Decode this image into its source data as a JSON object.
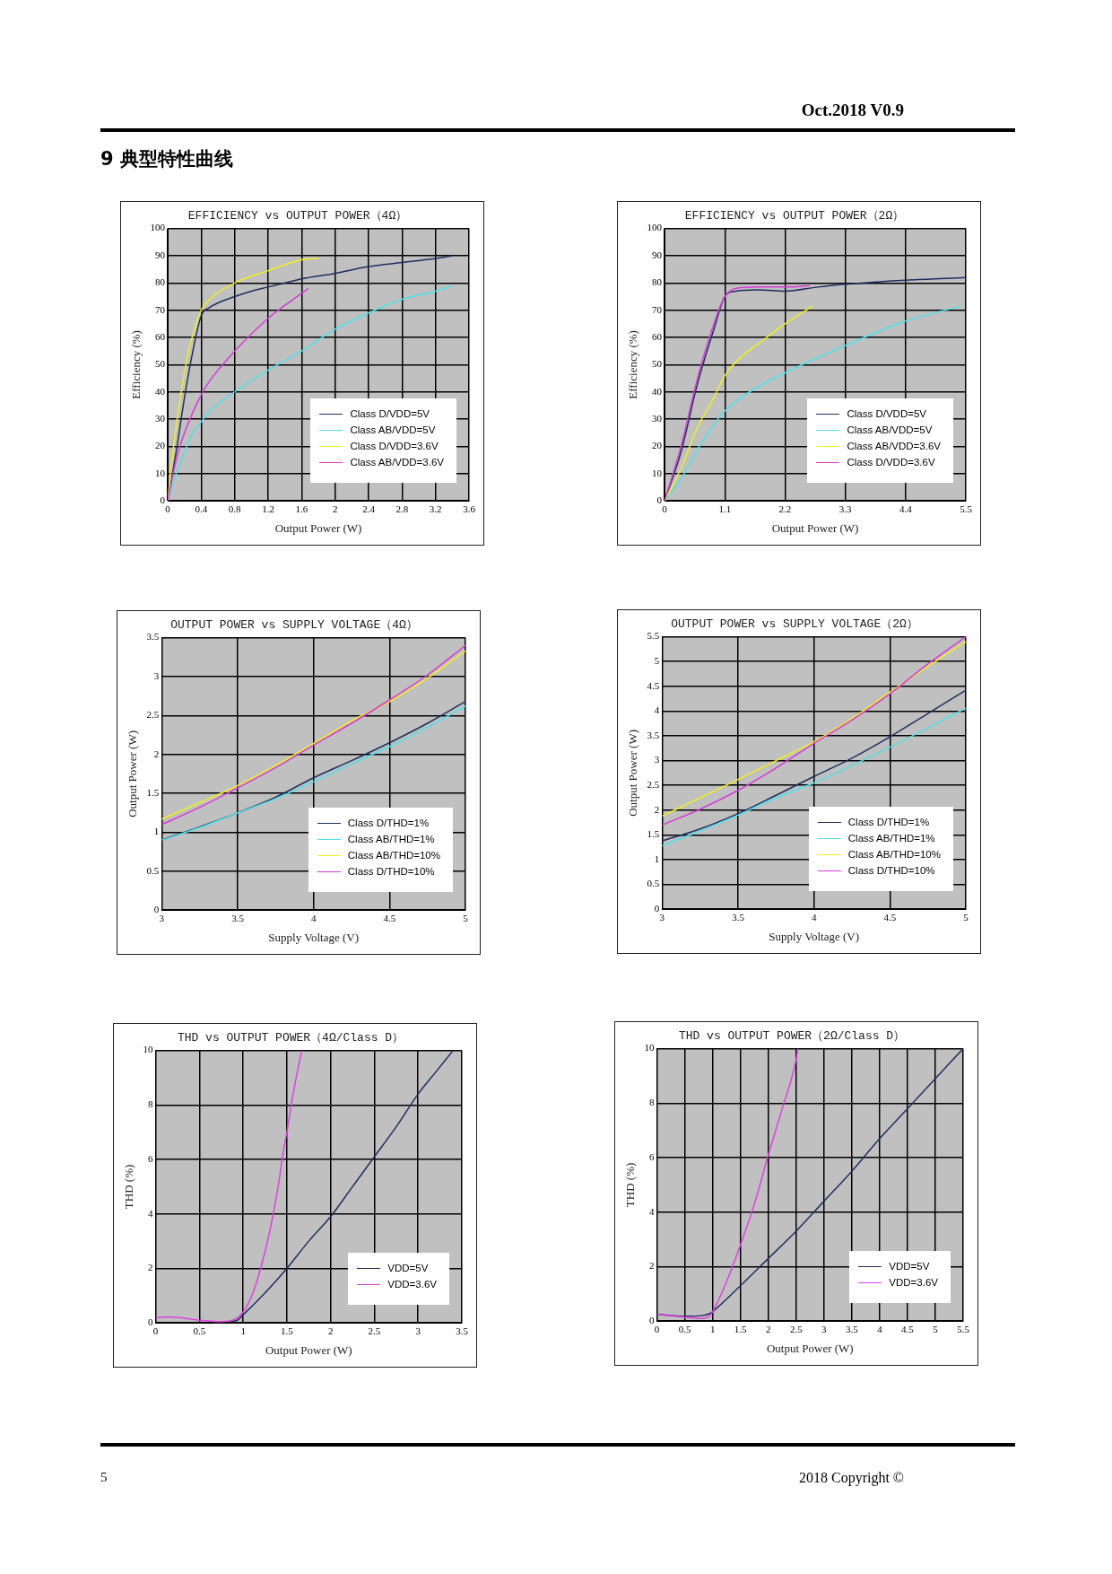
{
  "chart_data": [
    {
      "type": "other",
      "title": "9 典型特性曲线",
      "annotations": [
        "Oct.2018 V0.9",
        "5",
        "2018 Copyright ©"
      ]
    },
    {
      "type": "line",
      "title": "EFFICIENCY vs OUTPUT POWER（4Ω）",
      "xlabel": "Output Power (W)",
      "ylabel": "Efficiency (%)",
      "xlim": [
        0,
        3.6
      ],
      "xticks": [
        0,
        0.4,
        0.8,
        1.2,
        1.6,
        2,
        2.4,
        2.8,
        3.2,
        3.6
      ],
      "ylim": [
        0,
        100
      ],
      "yticks": [
        0,
        10,
        20,
        30,
        40,
        50,
        60,
        70,
        80,
        90,
        100
      ],
      "grid": true,
      "legend": "bottom right",
      "series": [
        {
          "name": "Class D/VDD=5V",
          "color": "#1f2f5f",
          "x": [
            0,
            0.1,
            0.2,
            0.3,
            0.4,
            0.5,
            0.8,
            1.0,
            1.2,
            1.4,
            1.6,
            2.0,
            2.4,
            2.8,
            3.2,
            3.4
          ],
          "values": [
            0,
            18,
            38,
            55,
            68,
            71,
            75,
            77,
            78.5,
            80,
            81.5,
            83.5,
            86,
            87.5,
            89,
            90
          ]
        },
        {
          "name": "Class AB/VDD=5V",
          "color": "#4fe0e8",
          "x": [
            0,
            0.1,
            0.2,
            0.3,
            0.4,
            0.5,
            0.8,
            1.2,
            1.6,
            2.0,
            2.4,
            2.8,
            3.2,
            3.4
          ],
          "values": [
            0,
            10,
            18,
            25,
            29,
            33,
            40,
            48,
            55,
            63,
            69,
            74,
            77,
            79
          ]
        },
        {
          "name": "Class D/VDD=3.6V",
          "color": "#f0ee20",
          "x": [
            0,
            0.05,
            0.15,
            0.25,
            0.4,
            0.5,
            0.8,
            1.2,
            1.6,
            1.8
          ],
          "values": [
            0,
            15,
            38,
            55,
            70,
            74,
            80,
            84.5,
            88.5,
            89
          ]
        },
        {
          "name": "Class AB/VDD=3.6V",
          "color": "#d63cd6",
          "x": [
            0,
            0.1,
            0.2,
            0.4,
            0.5,
            0.8,
            1.2,
            1.5,
            1.68
          ],
          "values": [
            0,
            15,
            25,
            39,
            44,
            55,
            67,
            74,
            78
          ]
        }
      ]
    },
    {
      "type": "line",
      "title": "EFFICIENCY vs OUTPUT POWER（2Ω）",
      "xlabel": "Output Power (W)",
      "ylabel": "Efficiency (%)",
      "xlim": [
        0,
        5.5
      ],
      "xticks": [
        0,
        1.1,
        2.2,
        3.3,
        4.4,
        5.5
      ],
      "ylim": [
        0,
        100
      ],
      "yticks": [
        0,
        10,
        20,
        30,
        40,
        50,
        60,
        70,
        80,
        90,
        100
      ],
      "grid": true,
      "legend": "bottom right",
      "series": [
        {
          "name": "Class D/VDD=5V",
          "color": "#1f2f5f",
          "x": [
            0,
            0.3,
            0.6,
            0.9,
            1.1,
            1.3,
            1.7,
            2.2,
            2.8,
            3.3,
            4.4,
            5.5
          ],
          "values": [
            0,
            18,
            43,
            63,
            75,
            77,
            77.5,
            77,
            78.5,
            79.5,
            81,
            82
          ]
        },
        {
          "name": "Class AB/VDD=5V",
          "color": "#4fe0e8",
          "x": [
            0,
            0.3,
            0.6,
            0.9,
            1.1,
            1.4,
            2.2,
            3.3,
            4.4,
            5.4
          ],
          "values": [
            0,
            8,
            19,
            28,
            33,
            38,
            47,
            57,
            66,
            71.5
          ]
        },
        {
          "name": "Class AB/VDD=3.6V",
          "color": "#f0ee20",
          "x": [
            0,
            0.3,
            0.6,
            0.9,
            1.1,
            1.3,
            1.8,
            2.2,
            2.7
          ],
          "values": [
            0,
            12,
            27,
            38,
            46,
            51,
            59,
            65,
            71.5
          ]
        },
        {
          "name": "Class D/VDD=3.6V",
          "color": "#d63cd6",
          "x": [
            0,
            0.3,
            0.6,
            0.9,
            1.1,
            1.3,
            1.7,
            2.2,
            2.65
          ],
          "values": [
            0,
            20,
            45,
            65,
            75,
            78,
            78.5,
            78.5,
            79
          ]
        }
      ]
    },
    {
      "type": "line",
      "title": "OUTPUT POWER vs SUPPLY VOLTAGE（4Ω）",
      "xlabel": "Supply Voltage (V)",
      "ylabel": "Output Power (W)",
      "xlim": [
        3,
        5
      ],
      "xticks": [
        3,
        3.5,
        4,
        4.5,
        5
      ],
      "ylim": [
        0,
        3.5
      ],
      "yticks": [
        0,
        0.5,
        1,
        1.5,
        2,
        2.5,
        3,
        3.5
      ],
      "grid": true,
      "legend": "bottom right",
      "series": [
        {
          "name": "Class D/THD=1%",
          "color": "#1f2f5f",
          "x": [
            3,
            3.25,
            3.5,
            3.75,
            4,
            4.25,
            4.5,
            4.75,
            5
          ],
          "values": [
            0.9,
            1.07,
            1.25,
            1.45,
            1.7,
            1.92,
            2.15,
            2.4,
            2.68
          ]
        },
        {
          "name": "Class AB/THD=1%",
          "color": "#4fe0e8",
          "x": [
            3,
            3.25,
            3.5,
            3.75,
            4,
            4.25,
            4.5,
            4.75,
            5
          ],
          "values": [
            0.9,
            1.06,
            1.25,
            1.43,
            1.65,
            1.88,
            2.1,
            2.35,
            2.62
          ]
        },
        {
          "name": "Class AB/THD=10%",
          "color": "#f0ee20",
          "x": [
            3,
            3.25,
            3.5,
            3.75,
            4,
            4.25,
            4.5,
            4.75,
            5
          ],
          "values": [
            1.17,
            1.38,
            1.6,
            1.86,
            2.14,
            2.43,
            2.68,
            2.98,
            3.33
          ]
        },
        {
          "name": "Class D/THD=10%",
          "color": "#d63cd6",
          "x": [
            3,
            3.25,
            3.5,
            3.75,
            4,
            4.25,
            4.5,
            4.75,
            5
          ],
          "values": [
            1.1,
            1.32,
            1.57,
            1.83,
            2.12,
            2.4,
            2.7,
            3.02,
            3.4
          ]
        }
      ]
    },
    {
      "type": "line",
      "title": "OUTPUT POWER vs SUPPLY VOLTAGE（2Ω）",
      "xlabel": "Supply Voltage (V)",
      "ylabel": "Output Power (W)",
      "xlim": [
        3,
        5
      ],
      "xticks": [
        3,
        3.5,
        4,
        4.5,
        5
      ],
      "ylim": [
        0,
        5.5
      ],
      "yticks": [
        0,
        0.5,
        1,
        1.5,
        2,
        2.5,
        3,
        3.5,
        4,
        4.5,
        5,
        5.5
      ],
      "grid": true,
      "legend": "bottom right",
      "series": [
        {
          "name": "Class D/THD=1%",
          "color": "#1f2f5f",
          "x": [
            3,
            3.25,
            3.5,
            3.75,
            4,
            4.25,
            4.5,
            4.75,
            5
          ],
          "values": [
            1.38,
            1.62,
            1.93,
            2.3,
            2.68,
            3.05,
            3.48,
            3.95,
            4.42
          ]
        },
        {
          "name": "Class AB/THD=1%",
          "color": "#4fe0e8",
          "x": [
            3,
            3.25,
            3.5,
            3.75,
            4,
            4.25,
            4.5,
            4.75,
            5
          ],
          "values": [
            1.28,
            1.58,
            1.9,
            2.25,
            2.55,
            2.9,
            3.27,
            3.66,
            4.06
          ]
        },
        {
          "name": "Class AB/THD=10%",
          "color": "#f0ee20",
          "x": [
            3,
            3.25,
            3.5,
            3.75,
            4,
            4.25,
            4.5,
            4.75,
            5
          ],
          "values": [
            1.88,
            2.25,
            2.62,
            3.0,
            3.38,
            3.85,
            4.38,
            4.9,
            5.4
          ]
        },
        {
          "name": "Class D/THD=10%",
          "color": "#d63cd6",
          "x": [
            3,
            3.25,
            3.5,
            3.75,
            4,
            4.25,
            4.5,
            4.75,
            5
          ],
          "values": [
            1.7,
            2.02,
            2.4,
            2.85,
            3.35,
            3.82,
            4.35,
            4.95,
            5.5
          ]
        }
      ]
    },
    {
      "type": "line",
      "title": "THD vs OUTPUT POWER（4Ω/Class D）",
      "xlabel": "Output Power (W)",
      "ylabel": "THD (%)",
      "xlim": [
        0,
        3.5
      ],
      "xticks": [
        0,
        0.5,
        1,
        1.5,
        2,
        2.5,
        3,
        3.5
      ],
      "ylim": [
        0,
        10
      ],
      "yticks": [
        0,
        2,
        4,
        6,
        8,
        10
      ],
      "grid": true,
      "legend": "bottom right",
      "series": [
        {
          "name": "VDD=5V",
          "color": "#1f2f5f",
          "x": [
            0.85,
            0.92,
            1,
            1.25,
            1.5,
            1.75,
            2,
            2.25,
            2.5,
            2.75,
            3,
            3.2,
            3.4
          ],
          "values": [
            0.06,
            0.08,
            0.3,
            1.1,
            2,
            3,
            3.9,
            5,
            6.1,
            7.2,
            8.4,
            9.2,
            10
          ]
        },
        {
          "name": "VDD=3.6V",
          "color": "#e040e0",
          "x": [
            0,
            0.15,
            0.5,
            0.75,
            0.9,
            1,
            1.1,
            1.2,
            1.3,
            1.4,
            1.45,
            1.5,
            1.55,
            1.6,
            1.67
          ],
          "values": [
            0.2,
            0.22,
            0.1,
            0.05,
            0.12,
            0.4,
            1,
            2,
            3.3,
            5,
            6.1,
            7,
            8,
            8.9,
            10
          ]
        }
      ]
    },
    {
      "type": "line",
      "title": "THD vs OUTPUT POWER（2Ω/Class D）",
      "xlabel": "Output Power (W)",
      "ylabel": "THD (%)",
      "xlim": [
        0,
        5.5
      ],
      "xticks": [
        0,
        0.5,
        1,
        1.5,
        2,
        2.5,
        3,
        3.5,
        4,
        4.5,
        5,
        5.5
      ],
      "ylim": [
        0,
        10
      ],
      "yticks": [
        0,
        2,
        4,
        6,
        8,
        10
      ],
      "grid": true,
      "legend": "bottom right",
      "series": [
        {
          "name": "VDD=5V",
          "color": "#1f2f5f",
          "x": [
            0,
            0.5,
            0.8,
            0.95,
            1,
            1.5,
            2,
            2.5,
            3,
            3.5,
            4,
            4.5,
            5,
            5.5
          ],
          "values": [
            0.25,
            0.18,
            0.2,
            0.28,
            0.35,
            1.3,
            2.3,
            3.3,
            4.4,
            5.5,
            6.7,
            7.8,
            8.9,
            10
          ]
        },
        {
          "name": "VDD=3.6V",
          "color": "#e040e0",
          "x": [
            0,
            0.5,
            0.8,
            0.95,
            1,
            1.2,
            1.5,
            1.75,
            2,
            2.25,
            2.5,
            2.53
          ],
          "values": [
            0.25,
            0.15,
            0.1,
            0.2,
            0.35,
            1.2,
            2.8,
            4.3,
            6.1,
            7.8,
            9.6,
            10
          ]
        }
      ]
    }
  ]
}
